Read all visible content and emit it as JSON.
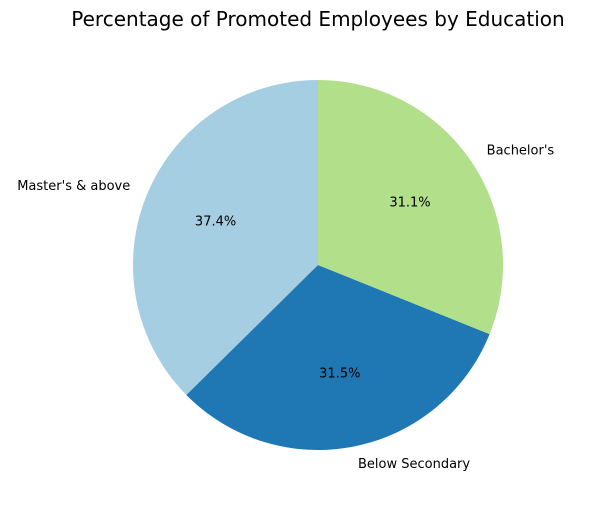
{
  "chart_data": {
    "type": "pie",
    "title": "Percentage of Promoted Employees by Education",
    "start_angle_deg": 90,
    "direction": "counterclockwise",
    "slices": [
      {
        "label": "Master's & above",
        "value": 37.4,
        "pct_label": "37.4%",
        "color": "#a6cee3"
      },
      {
        "label": "Below Secondary",
        "value": 31.5,
        "pct_label": "31.5%",
        "color": "#1f78b4"
      },
      {
        "label": "Bachelor's",
        "value": 31.1,
        "pct_label": "31.1%",
        "color": "#b2df8a"
      }
    ]
  }
}
